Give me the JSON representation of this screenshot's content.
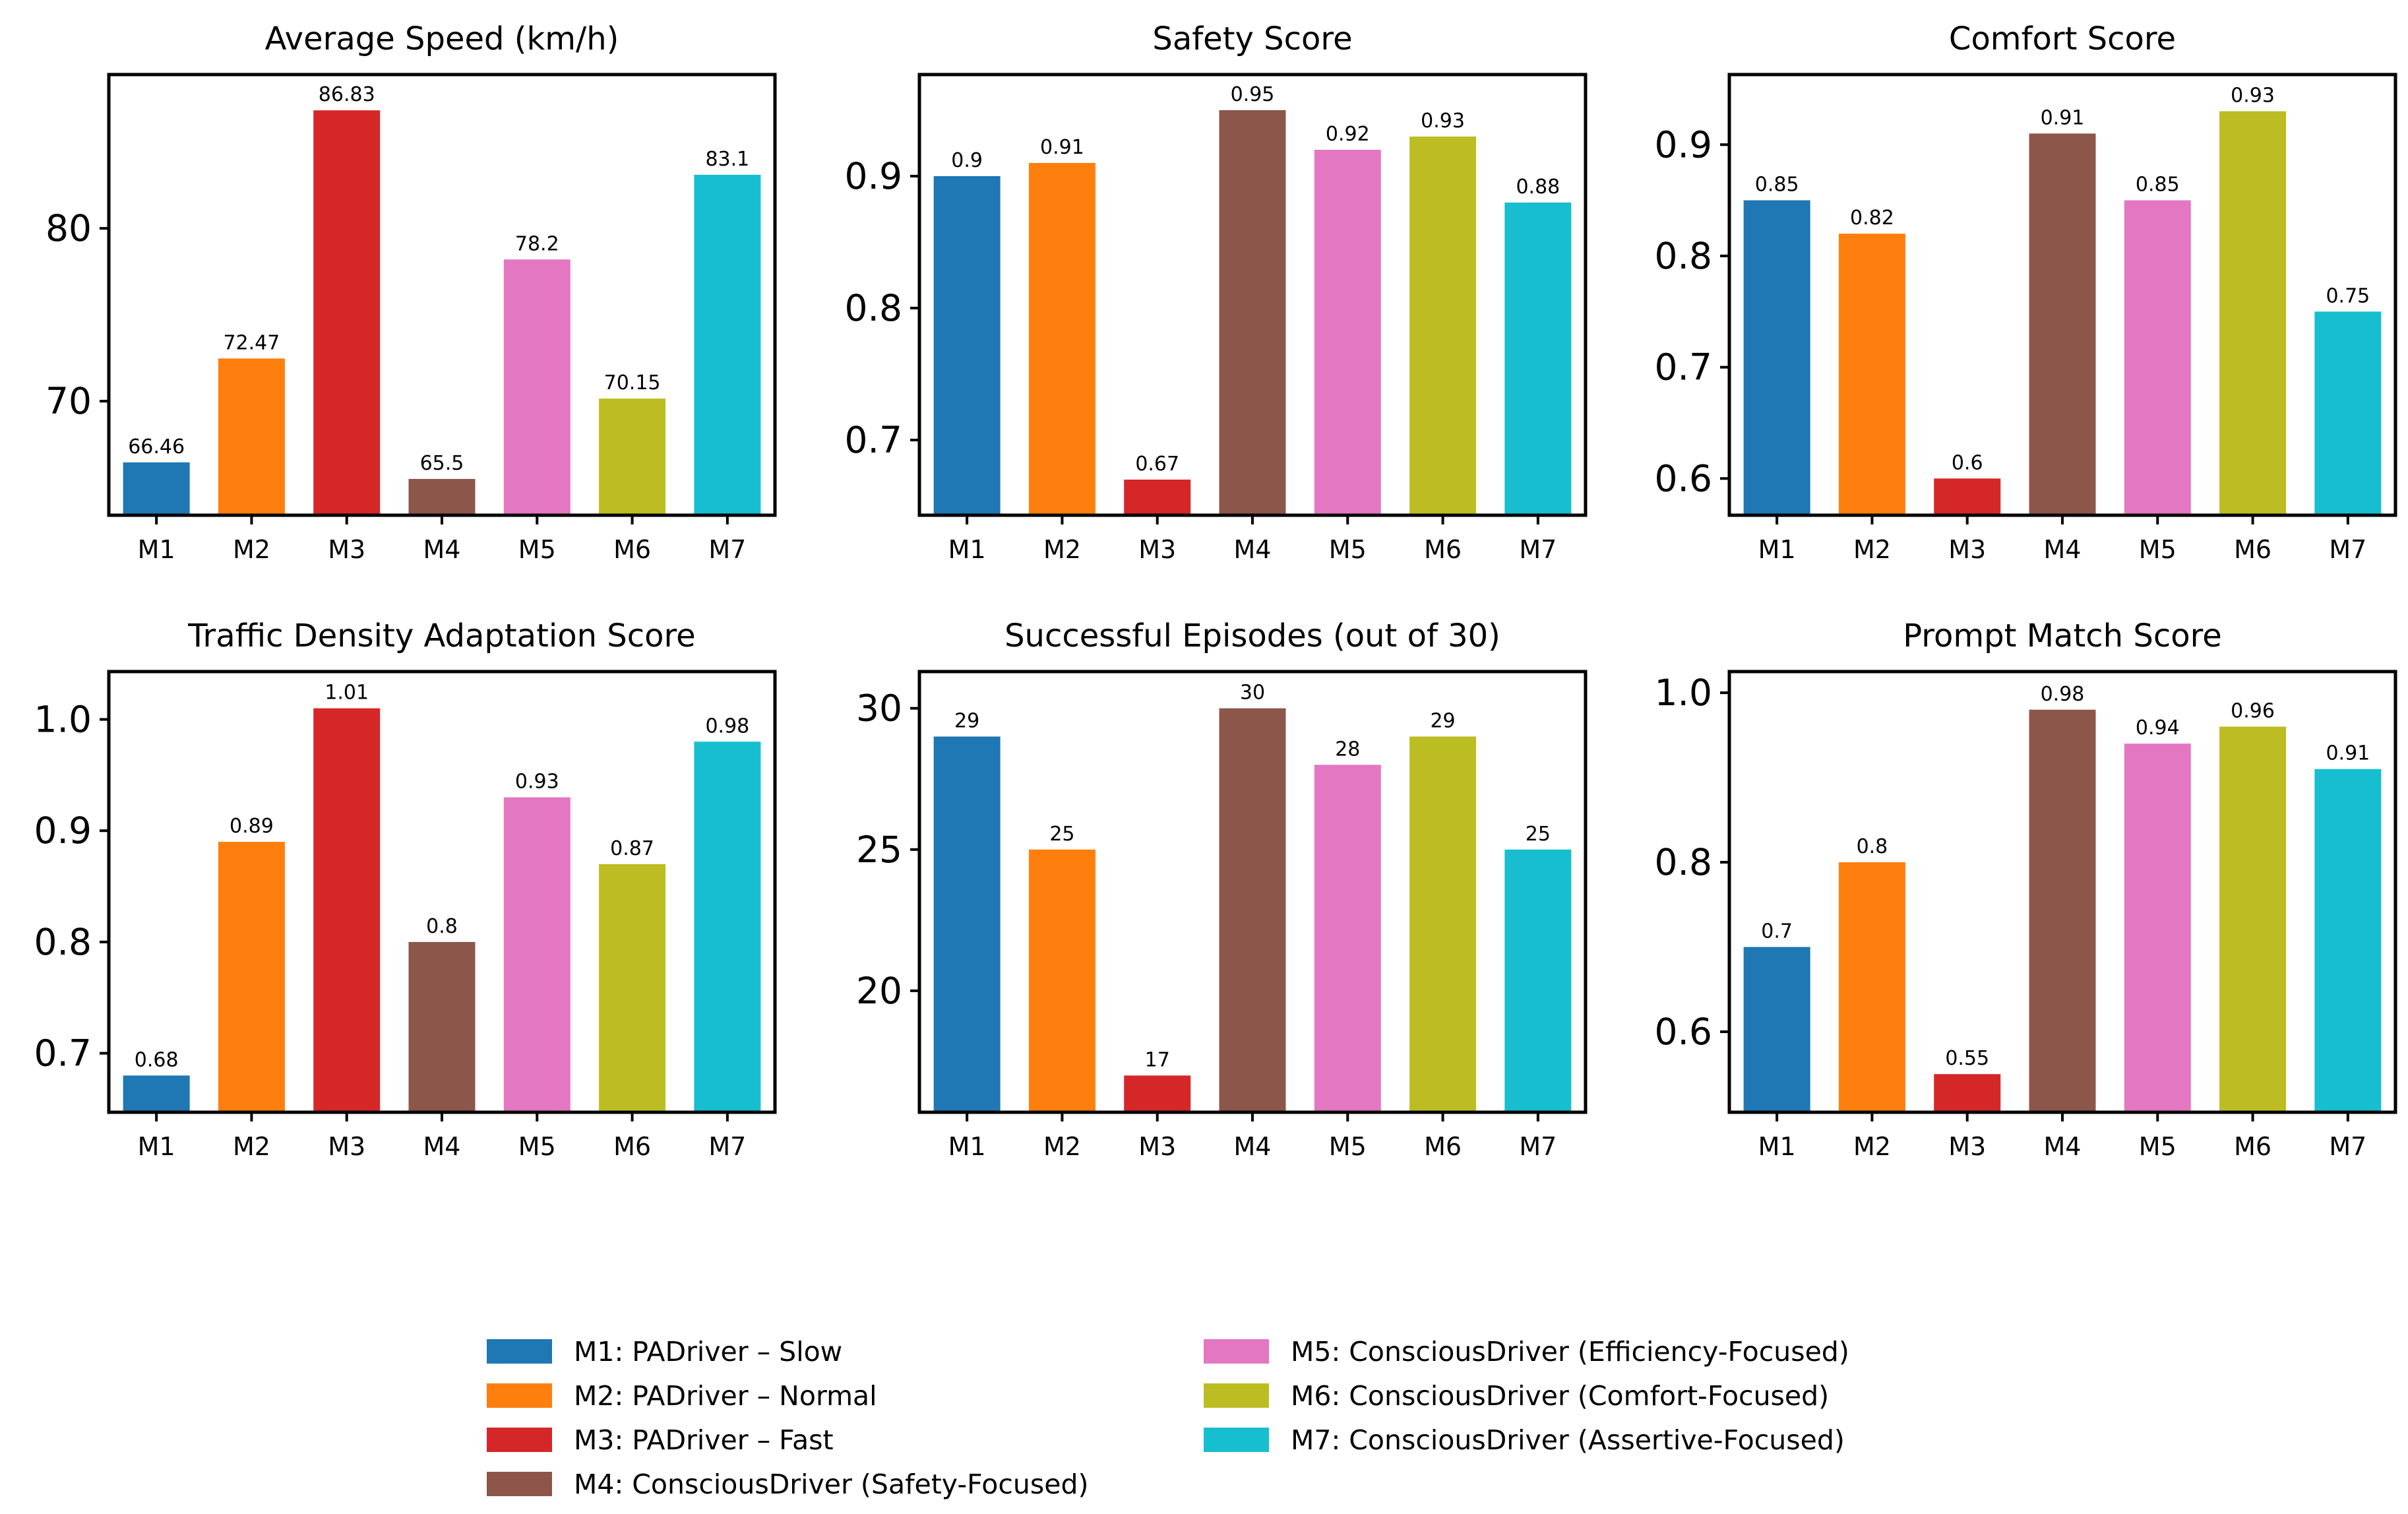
{
  "chart_data": [
    {
      "type": "bar",
      "title": "Average Speed (km/h)",
      "categories": [
        "M1",
        "M2",
        "M3",
        "M4",
        "M5",
        "M6",
        "M7"
      ],
      "values": [
        66.46,
        72.47,
        86.83,
        65.5,
        78.2,
        70.15,
        83.1
      ],
      "value_labels": [
        "66.46",
        "72.47",
        "86.83",
        "65.5",
        "78.2",
        "70.15",
        "83.1"
      ],
      "ylim": [
        63.4,
        88.9
      ],
      "yticks": [
        70,
        80
      ],
      "ytick_labels": [
        "70",
        "80"
      ],
      "grid": false
    },
    {
      "type": "bar",
      "title": "Safety Score",
      "categories": [
        "M1",
        "M2",
        "M3",
        "M4",
        "M5",
        "M6",
        "M7"
      ],
      "values": [
        0.9,
        0.91,
        0.67,
        0.95,
        0.92,
        0.93,
        0.88
      ],
      "value_labels": [
        "0.9",
        "0.91",
        "0.67",
        "0.95",
        "0.92",
        "0.93",
        "0.88"
      ],
      "ylim": [
        0.643,
        0.977
      ],
      "yticks": [
        0.7,
        0.8,
        0.9
      ],
      "ytick_labels": [
        "0.7",
        "0.8",
        "0.9"
      ],
      "grid": false
    },
    {
      "type": "bar",
      "title": "Comfort Score",
      "categories": [
        "M1",
        "M2",
        "M3",
        "M4",
        "M5",
        "M6",
        "M7"
      ],
      "values": [
        0.85,
        0.82,
        0.6,
        0.91,
        0.85,
        0.93,
        0.75
      ],
      "value_labels": [
        "0.85",
        "0.82",
        "0.6",
        "0.91",
        "0.85",
        "0.93",
        "0.75"
      ],
      "ylim": [
        0.567,
        0.963
      ],
      "yticks": [
        0.6,
        0.7,
        0.8,
        0.9
      ],
      "ytick_labels": [
        "0.6",
        "0.7",
        "0.8",
        "0.9"
      ],
      "grid": false
    },
    {
      "type": "bar",
      "title": "Traffic Density Adaptation Score",
      "categories": [
        "M1",
        "M2",
        "M3",
        "M4",
        "M5",
        "M6",
        "M7"
      ],
      "values": [
        0.68,
        0.89,
        1.01,
        0.8,
        0.93,
        0.87,
        0.98
      ],
      "value_labels": [
        "0.68",
        "0.89",
        "1.01",
        "0.8",
        "0.93",
        "0.87",
        "0.98"
      ],
      "ylim": [
        0.647,
        1.043
      ],
      "yticks": [
        0.7,
        0.8,
        0.9,
        1.0
      ],
      "ytick_labels": [
        "0.7",
        "0.8",
        "0.9",
        "1.0"
      ],
      "grid": false
    },
    {
      "type": "bar",
      "title": "Successful Episodes (out of 30)",
      "categories": [
        "M1",
        "M2",
        "M3",
        "M4",
        "M5",
        "M6",
        "M7"
      ],
      "values": [
        29,
        25,
        17,
        30,
        28,
        29,
        25
      ],
      "value_labels": [
        "29",
        "25",
        "17",
        "30",
        "28",
        "29",
        "25"
      ],
      "ylim": [
        15.7,
        31.3
      ],
      "yticks": [
        20,
        25,
        30
      ],
      "ytick_labels": [
        "20",
        "25",
        "30"
      ],
      "grid": false
    },
    {
      "type": "bar",
      "title": "Prompt Match Score",
      "categories": [
        "M1",
        "M2",
        "M3",
        "M4",
        "M5",
        "M6",
        "M7"
      ],
      "values": [
        0.7,
        0.8,
        0.55,
        0.98,
        0.94,
        0.96,
        0.91
      ],
      "value_labels": [
        "0.7",
        "0.8",
        "0.55",
        "0.98",
        "0.94",
        "0.96",
        "0.91"
      ],
      "ylim": [
        0.505,
        1.025
      ],
      "yticks": [
        0.6,
        0.8,
        1.0
      ],
      "ytick_labels": [
        "0.6",
        "0.8",
        "1.0"
      ],
      "grid": false
    }
  ],
  "bar_colors": [
    "#1f77b4",
    "#ff7f0e",
    "#d62728",
    "#8c564b",
    "#e377c2",
    "#bcbd22",
    "#17becf"
  ],
  "legend": {
    "placement": "bottom-center",
    "entries": [
      {
        "label": "M1: PADriver – Slow",
        "color": "#1f77b4"
      },
      {
        "label": "M2: PADriver – Normal",
        "color": "#ff7f0e"
      },
      {
        "label": "M3: PADriver – Fast",
        "color": "#d62728"
      },
      {
        "label": "M4: ConsciousDriver (Safety-Focused)",
        "color": "#8c564b"
      },
      {
        "label": "M5: ConsciousDriver (Efficiency-Focused)",
        "color": "#e377c2"
      },
      {
        "label": "M6: ConsciousDriver (Comfort-Focused)",
        "color": "#bcbd22"
      },
      {
        "label": "M7: ConsciousDriver (Assertive-Focused)",
        "color": "#17becf"
      }
    ]
  }
}
